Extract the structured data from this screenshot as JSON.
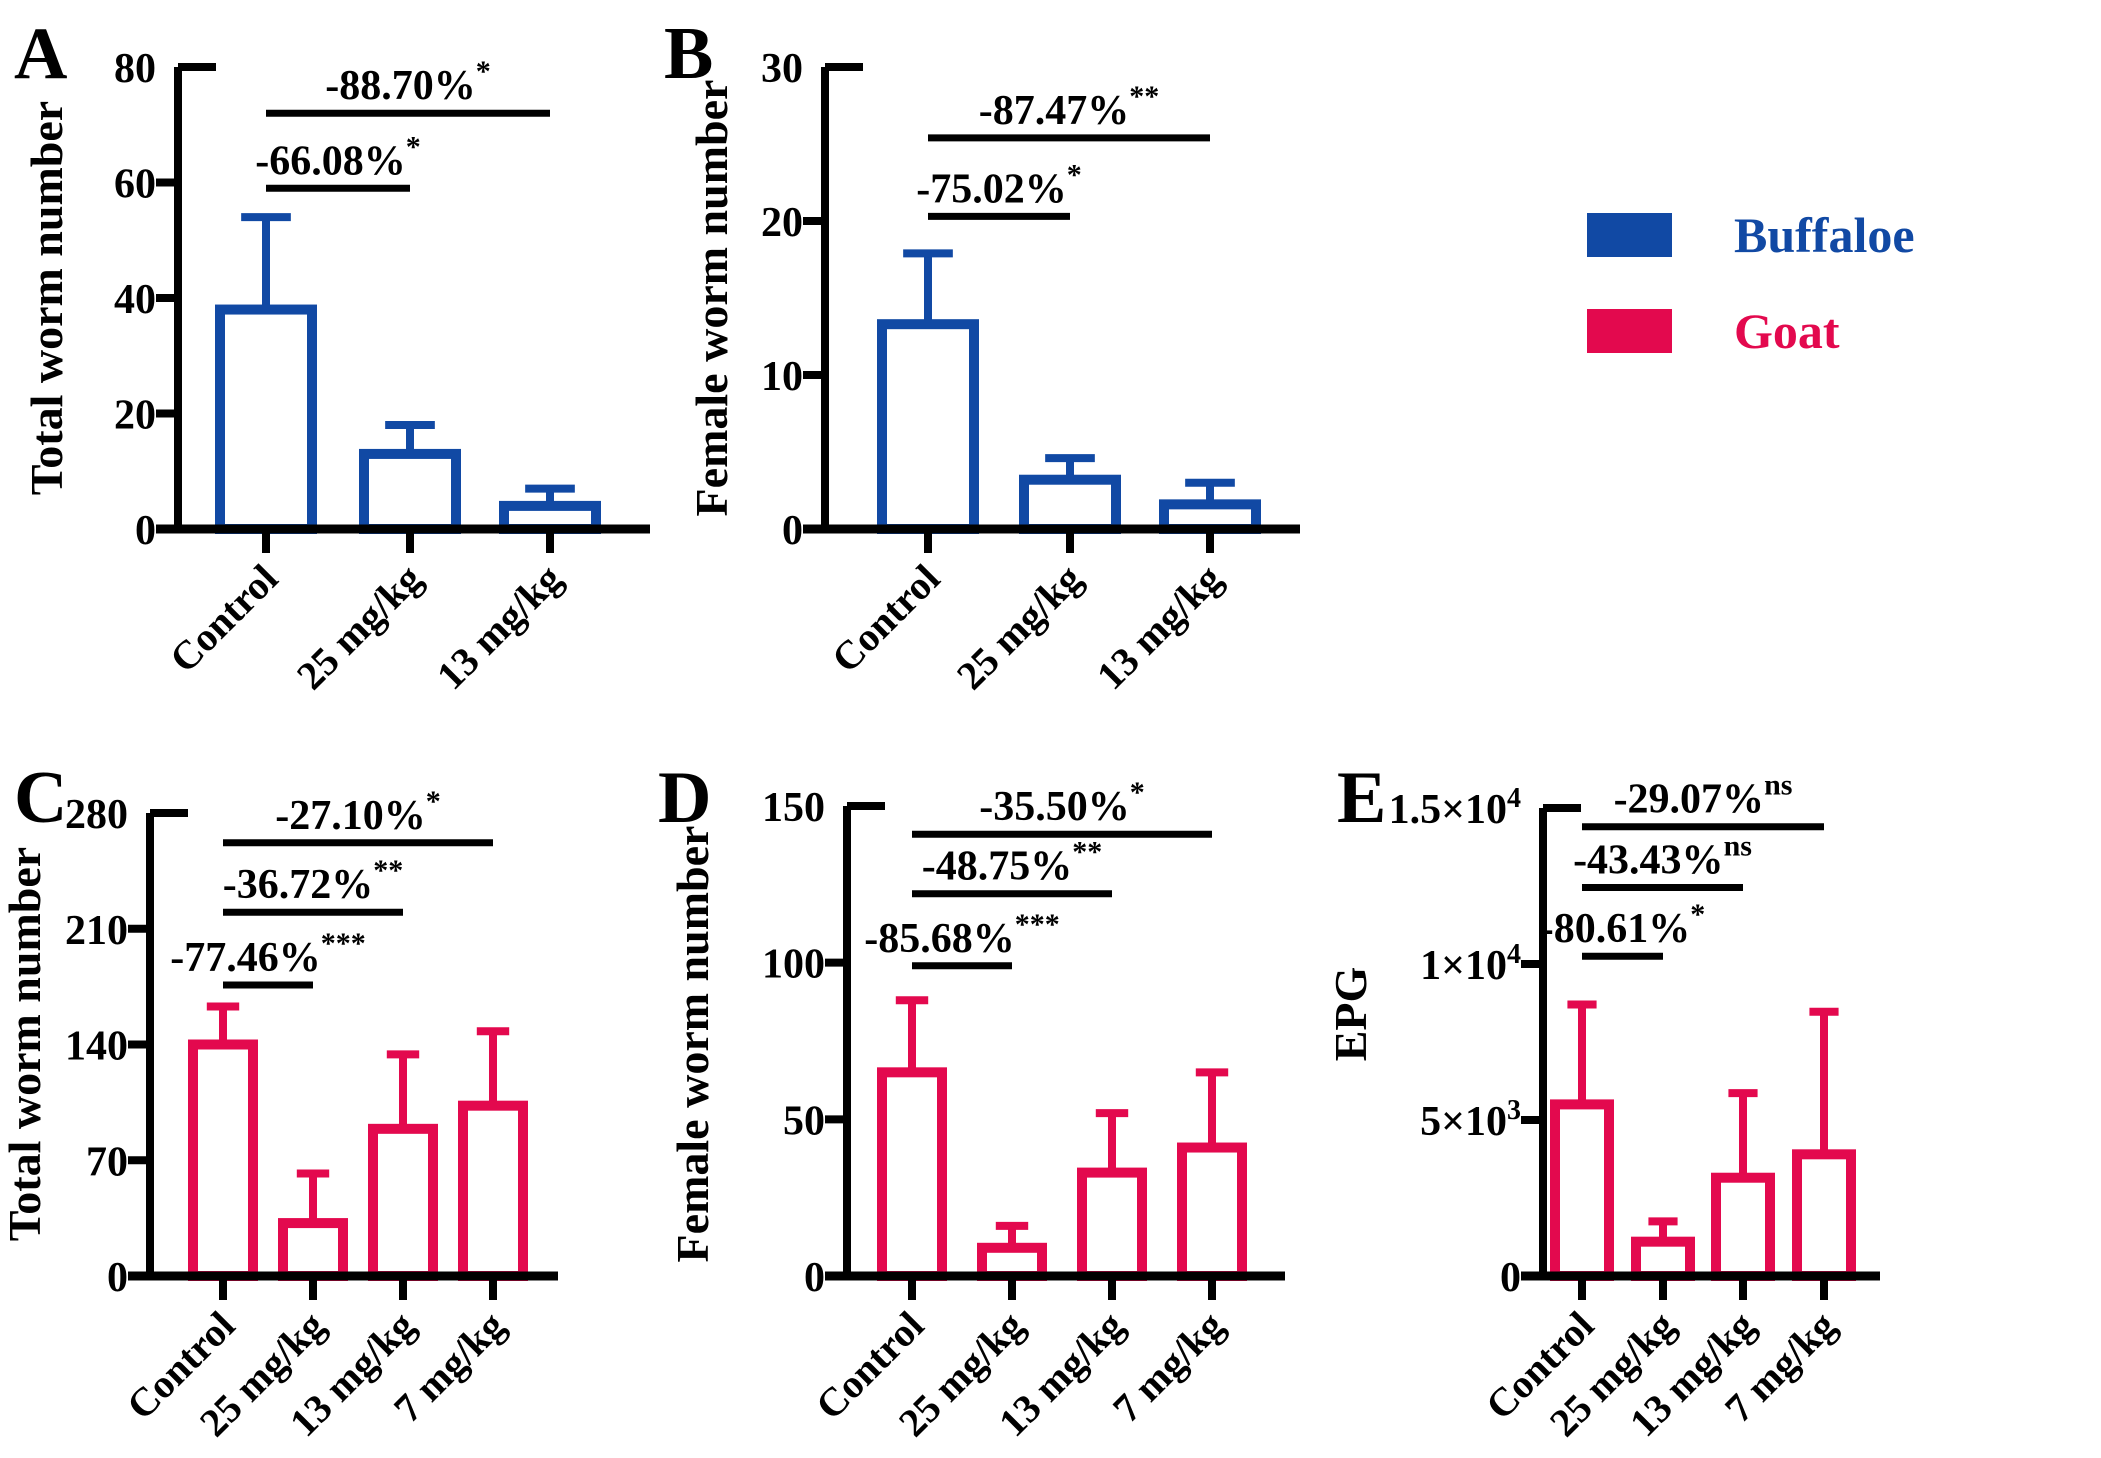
{
  "figure": {
    "colors": {
      "buffaloe": "#1149a4",
      "goat": "#e3094e",
      "axis": "#000000"
    },
    "legend": {
      "items": [
        {
          "label": "Buffaloe",
          "color": "#1149a4"
        },
        {
          "label": "Goat",
          "color": "#e3094e"
        }
      ]
    }
  },
  "chart_data": [
    {
      "type": "bar",
      "panel": "A",
      "series": "Buffaloe",
      "color": "buffaloe",
      "ylabel": "Total worm number",
      "ylim": [
        0,
        80
      ],
      "yticks": [
        {
          "v": 0,
          "label": "0"
        },
        {
          "v": 20,
          "label": "20"
        },
        {
          "v": 40,
          "label": "40"
        },
        {
          "v": 60,
          "label": "60"
        },
        {
          "v": 80,
          "label": "80"
        }
      ],
      "categories": [
        "Control",
        "25 mg/kg",
        "13 mg/kg"
      ],
      "values": [
        38,
        13,
        4
      ],
      "error_top": [
        54,
        18,
        7
      ],
      "comparisons": [
        {
          "from": 0,
          "to": 1,
          "line_y": 59,
          "label": "-66.08%",
          "sup": "*"
        },
        {
          "from": 0,
          "to": 2,
          "line_y": 72,
          "label": "-88.70%",
          "sup": "*"
        }
      ]
    },
    {
      "type": "bar",
      "panel": "B",
      "series": "Buffaloe",
      "color": "buffaloe",
      "ylabel": "Female worm number",
      "ylim": [
        0,
        30
      ],
      "yticks": [
        {
          "v": 0,
          "label": "0"
        },
        {
          "v": 10,
          "label": "10"
        },
        {
          "v": 20,
          "label": "20"
        },
        {
          "v": 30,
          "label": "30"
        }
      ],
      "categories": [
        "Control",
        "25 mg/kg",
        "13 mg/kg"
      ],
      "values": [
        13.3,
        3.2,
        1.6
      ],
      "error_top": [
        17.9,
        4.6,
        3
      ],
      "comparisons": [
        {
          "from": 0,
          "to": 1,
          "line_y": 20.3,
          "label": "-75.02%",
          "sup": "*"
        },
        {
          "from": 0,
          "to": 2,
          "line_y": 25.4,
          "label": "-87.47%",
          "sup": "**"
        }
      ]
    },
    {
      "type": "bar",
      "panel": "C",
      "series": "Goat",
      "color": "goat",
      "ylabel": "Total worm number",
      "ylim": [
        0,
        280
      ],
      "yticks": [
        {
          "v": 0,
          "label": "0"
        },
        {
          "v": 70,
          "label": "70"
        },
        {
          "v": 140,
          "label": "140"
        },
        {
          "v": 210,
          "label": "210"
        },
        {
          "v": 280,
          "label": "280"
        }
      ],
      "categories": [
        "Control",
        "25 mg/kg",
        "13 mg/kg",
        "7 mg/kg"
      ],
      "values": [
        140,
        32,
        89,
        103
      ],
      "error_top": [
        163,
        62,
        134,
        148
      ],
      "comparisons": [
        {
          "from": 0,
          "to": 1,
          "line_y": 176,
          "label": "-77.46%",
          "sup": "***"
        },
        {
          "from": 0,
          "to": 2,
          "line_y": 220,
          "label": "-36.72%",
          "sup": "**"
        },
        {
          "from": 0,
          "to": 3,
          "line_y": 262,
          "label": "-27.10%",
          "sup": "*"
        }
      ]
    },
    {
      "type": "bar",
      "panel": "D",
      "series": "Goat",
      "color": "goat",
      "ylabel": "Female worm number",
      "ylim": [
        0,
        150
      ],
      "yticks": [
        {
          "v": 0,
          "label": "0"
        },
        {
          "v": 50,
          "label": "50"
        },
        {
          "v": 100,
          "label": "100"
        },
        {
          "v": 150,
          "label": "150"
        }
      ],
      "categories": [
        "Control",
        "25 mg/kg",
        "13 mg/kg",
        "7 mg/kg"
      ],
      "values": [
        65,
        9,
        33,
        41
      ],
      "error_top": [
        88,
        16,
        52,
        65
      ],
      "comparisons": [
        {
          "from": 0,
          "to": 1,
          "line_y": 99,
          "label": "-85.68%",
          "sup": "***"
        },
        {
          "from": 0,
          "to": 2,
          "line_y": 122,
          "label": "-48.75%",
          "sup": "**"
        },
        {
          "from": 0,
          "to": 3,
          "line_y": 141,
          "label": "-35.50%",
          "sup": "*"
        }
      ]
    },
    {
      "type": "bar",
      "panel": "E",
      "series": "Goat",
      "color": "goat",
      "ylabel": "EPG",
      "ylim": [
        0,
        15000
      ],
      "yticks": [
        {
          "v": 0,
          "label": "0"
        },
        {
          "v": 5000,
          "label": "5×10",
          "sup": "3"
        },
        {
          "v": 10000,
          "label": "1×10",
          "sup": "4"
        },
        {
          "v": 15000,
          "label": "1.5×10",
          "sup": "4"
        }
      ],
      "categories": [
        "Control",
        "25 mg/kg",
        "13 mg/kg",
        "7 mg/kg"
      ],
      "values": [
        5500,
        1100,
        3150,
        3900
      ],
      "error_top": [
        8700,
        1750,
        5860,
        8470
      ],
      "comparisons": [
        {
          "from": 0,
          "to": 1,
          "line_y": 10250,
          "label": "-80.61%",
          "sup": "*"
        },
        {
          "from": 0,
          "to": 2,
          "line_y": 12450,
          "label": "-43.43%",
          "sup": "ns"
        },
        {
          "from": 0,
          "to": 3,
          "line_y": 14400,
          "label": "-29.07%",
          "sup": "ns"
        }
      ]
    }
  ]
}
